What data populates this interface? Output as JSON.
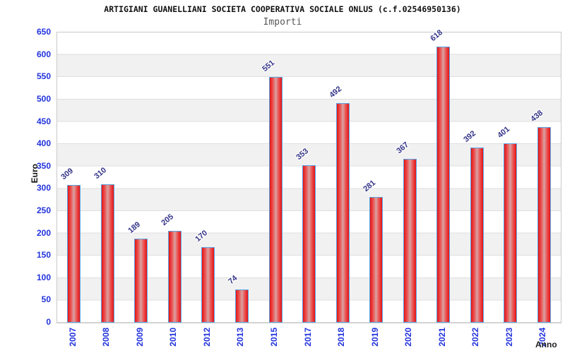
{
  "header": {
    "title": "ARTIGIANI GUANELLIANI SOCIETA COOPERATIVA SOCIALE ONLUS (c.f.02546950136)",
    "subtitle": "Importi"
  },
  "axes": {
    "y_title": "Euro",
    "x_title": "Anno"
  },
  "chart_data": {
    "type": "bar",
    "title": "ARTIGIANI GUANELLIANI SOCIETA COOPERATIVA SOCIALE ONLUS (c.f.02546950136)",
    "subtitle": "Importi",
    "categories": [
      "2007",
      "2008",
      "2009",
      "2010",
      "2012",
      "2013",
      "2015",
      "2017",
      "2018",
      "2019",
      "2020",
      "2021",
      "2022",
      "2023",
      "2024"
    ],
    "values": [
      309,
      310,
      189,
      205,
      170,
      74,
      551,
      353,
      492,
      281,
      367,
      618,
      392,
      401,
      438
    ],
    "xlabel": "Anno",
    "ylabel": "Euro",
    "ylim": [
      0,
      650
    ],
    "yticks": [
      0,
      50,
      100,
      150,
      200,
      250,
      300,
      350,
      400,
      450,
      500,
      550,
      600,
      650
    ],
    "grid": true,
    "legend_position": "none",
    "band_fill_alternating": true,
    "colors": {
      "bar_edge": "#e41414",
      "bar_center": "#d9a2a2",
      "bar_border": "#5aa5e5",
      "tick_label_blue": "#2233dd",
      "value_label_navy": "#333388",
      "band_gray": "#f1f1f1",
      "grid_line": "#dedede",
      "title_black": "#111111",
      "subtitle_gray": "#585858"
    }
  }
}
